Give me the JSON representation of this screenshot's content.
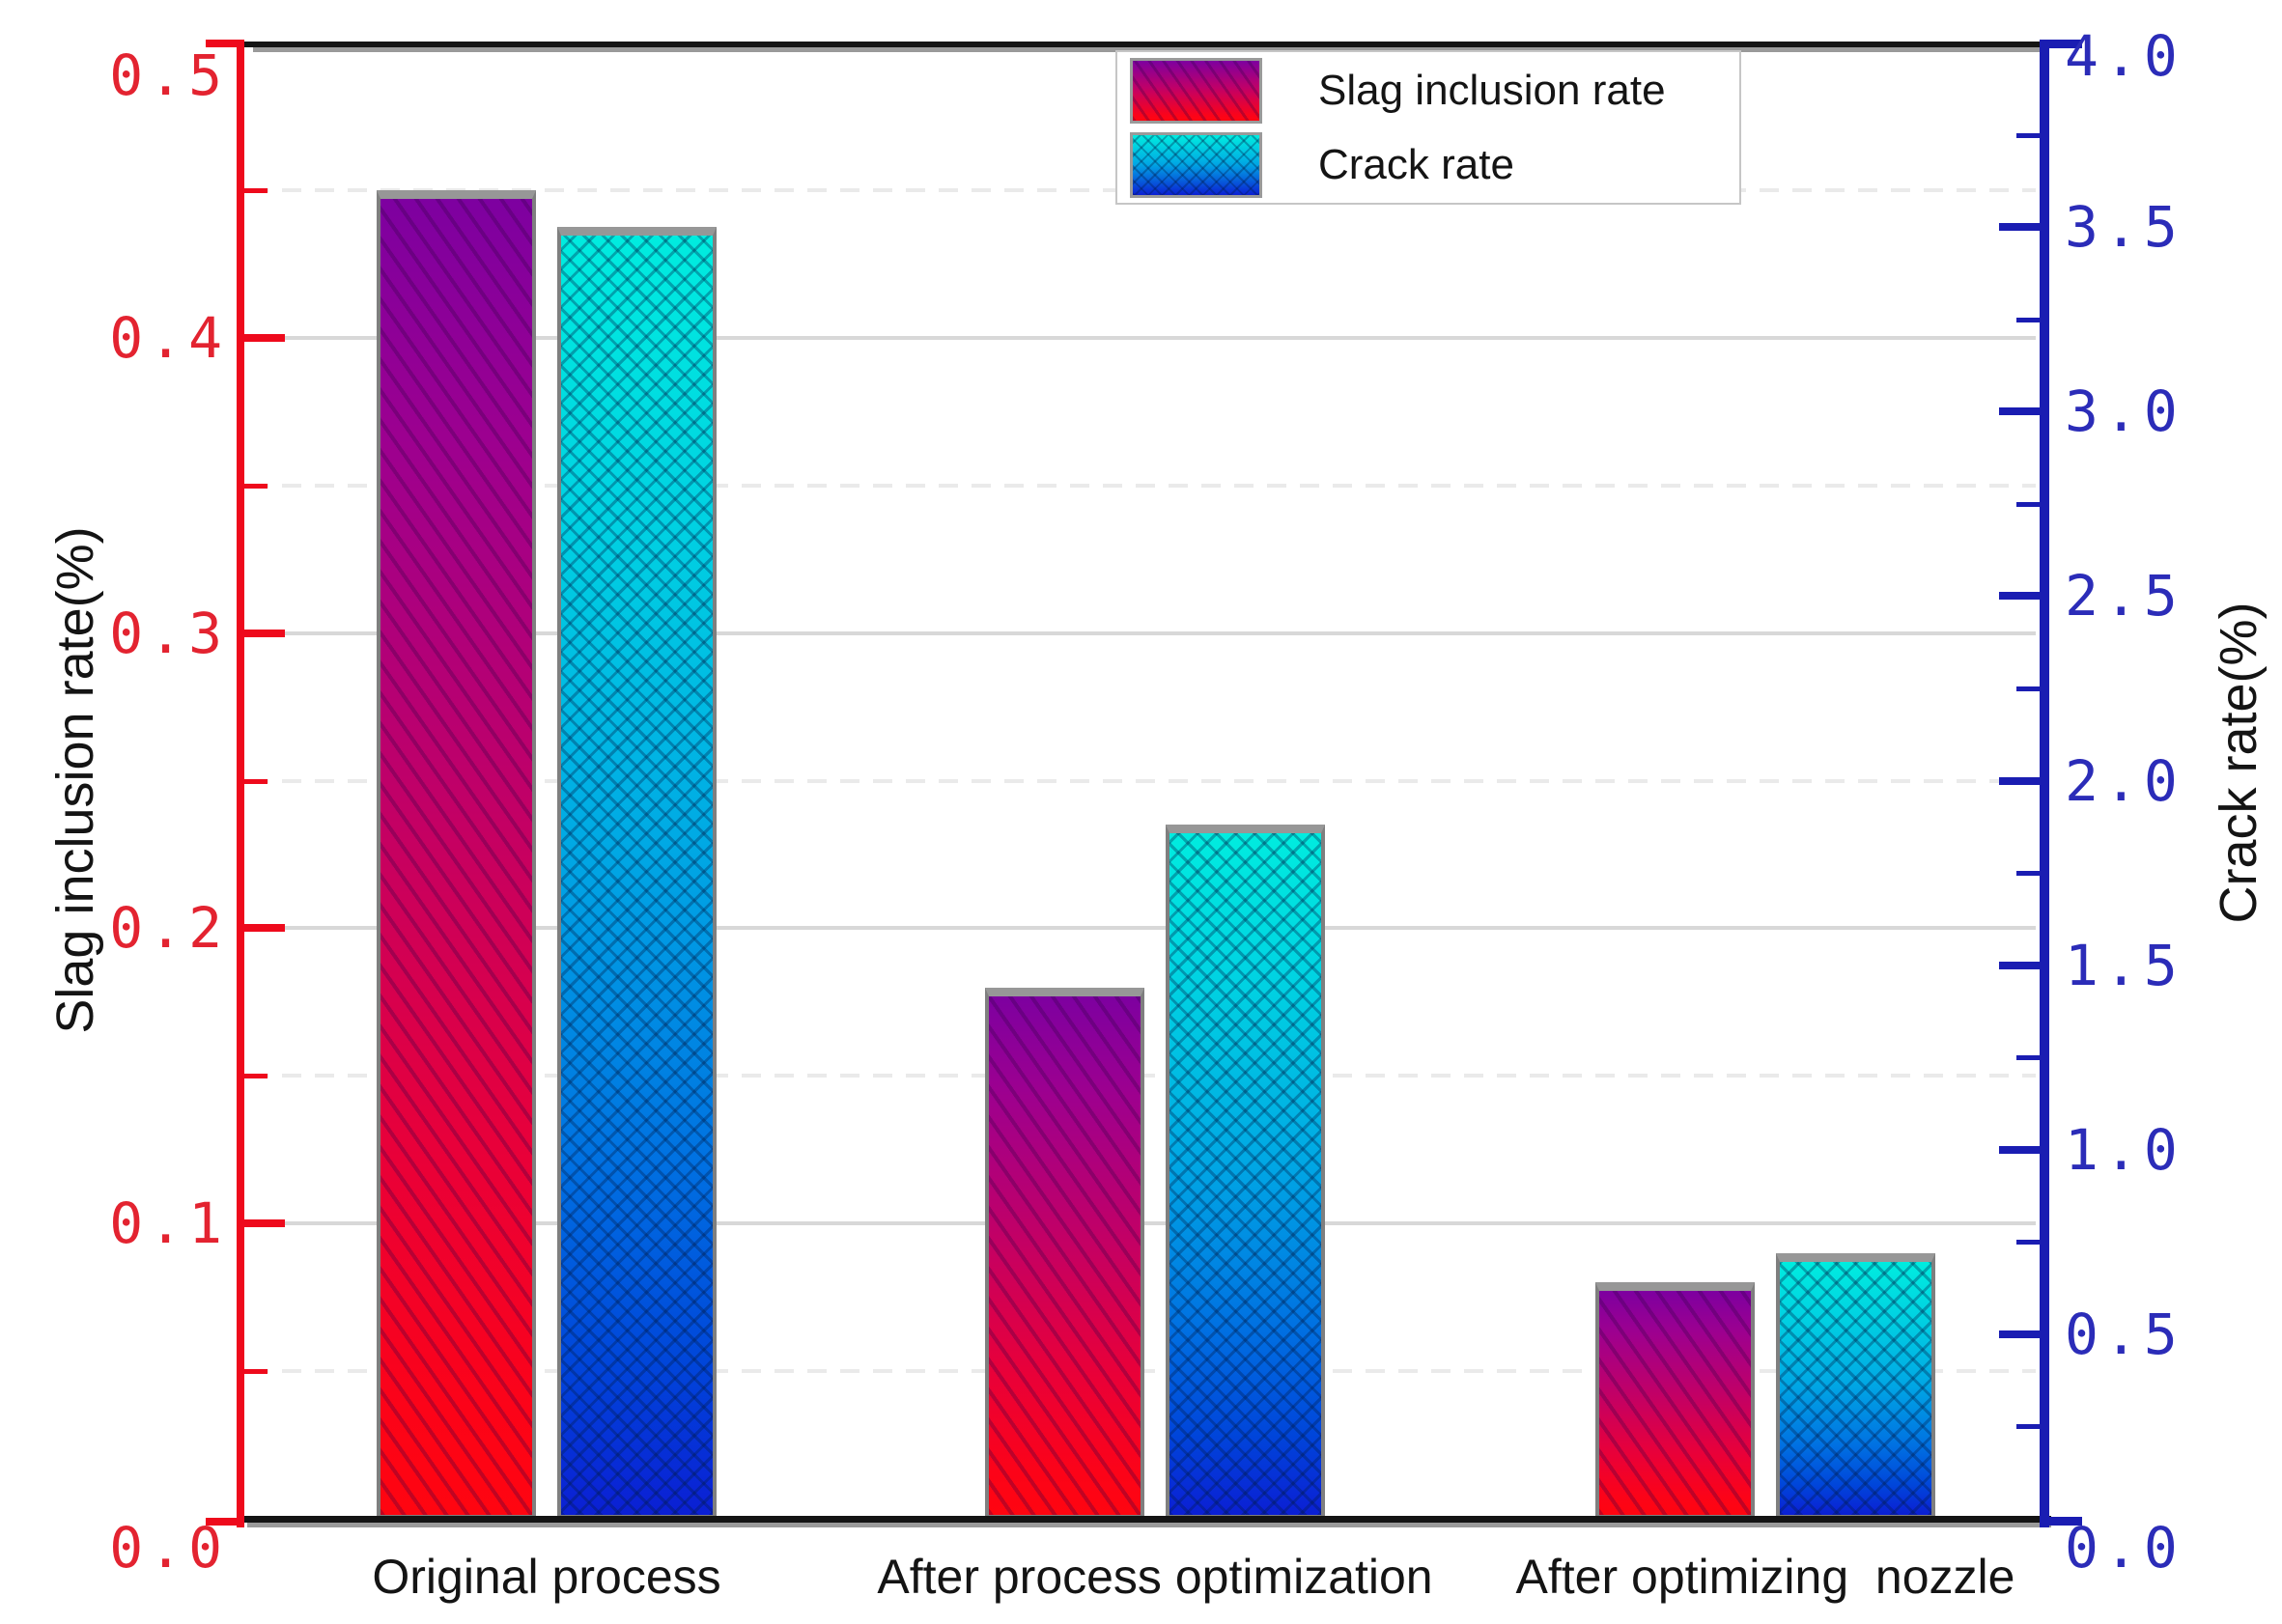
{
  "chart_data": {
    "type": "bar",
    "title": "",
    "categories": [
      "Original process",
      "After process optimization",
      "After optimizing  nozzle"
    ],
    "series": [
      {
        "name": "Slag inclusion rate",
        "axis": "left",
        "values": [
          0.45,
          0.18,
          0.08
        ]
      },
      {
        "name": "Crack rate",
        "axis": "right",
        "values": [
          3.5,
          1.88,
          0.72
        ]
      }
    ],
    "axes": {
      "left": {
        "title": "Slag inclusion rate(%)",
        "min": 0.0,
        "max": 0.5,
        "major_tick": 0.1,
        "minor_tick": 0.05,
        "labels": [
          "0.0",
          "0.1",
          "0.2",
          "0.3",
          "0.4",
          "0.5"
        ],
        "color": "#e32330"
      },
      "right": {
        "title": "Crack rate(%)",
        "min": 0.0,
        "max": 4.0,
        "major_tick": 0.5,
        "minor_tick": 0.25,
        "labels": [
          "0.0",
          "0.5",
          "1.0",
          "1.5",
          "2.0",
          "2.5",
          "3.0",
          "3.5",
          "4.0"
        ],
        "color": "#2b2cb8"
      },
      "x": {
        "labels": [
          "Original process",
          "After process optimization",
          "After optimizing  nozzle"
        ]
      }
    },
    "grid": {
      "major_lines_at": [
        0.1,
        0.2,
        0.3,
        0.4
      ],
      "minor_lines_at": [
        0.05,
        0.15,
        0.25,
        0.35,
        0.45
      ],
      "major_style": "solid",
      "minor_style": "dashed",
      "reference_axis": "left"
    },
    "legend": {
      "position": "top-center",
      "entries": [
        "Slag inclusion rate",
        "Crack rate"
      ]
    },
    "palette": {
      "background": "#ffffff",
      "left_axis_line": "#ee0a1c",
      "right_axis_line": "#1a1db2",
      "frame": "#141414",
      "frame_shadow": "#9a9a9a",
      "grid_major": "#d8d8d8",
      "grid_minor": "#eaeaea",
      "bar_border": "#7f7f7f",
      "slag_gradient_top": "#7d00a0",
      "slag_gradient_bottom": "#ff0510",
      "crack_gradient_top": "#00ecdf",
      "crack_gradient_bottom": "#0b1fd4",
      "text": "#141414"
    }
  }
}
